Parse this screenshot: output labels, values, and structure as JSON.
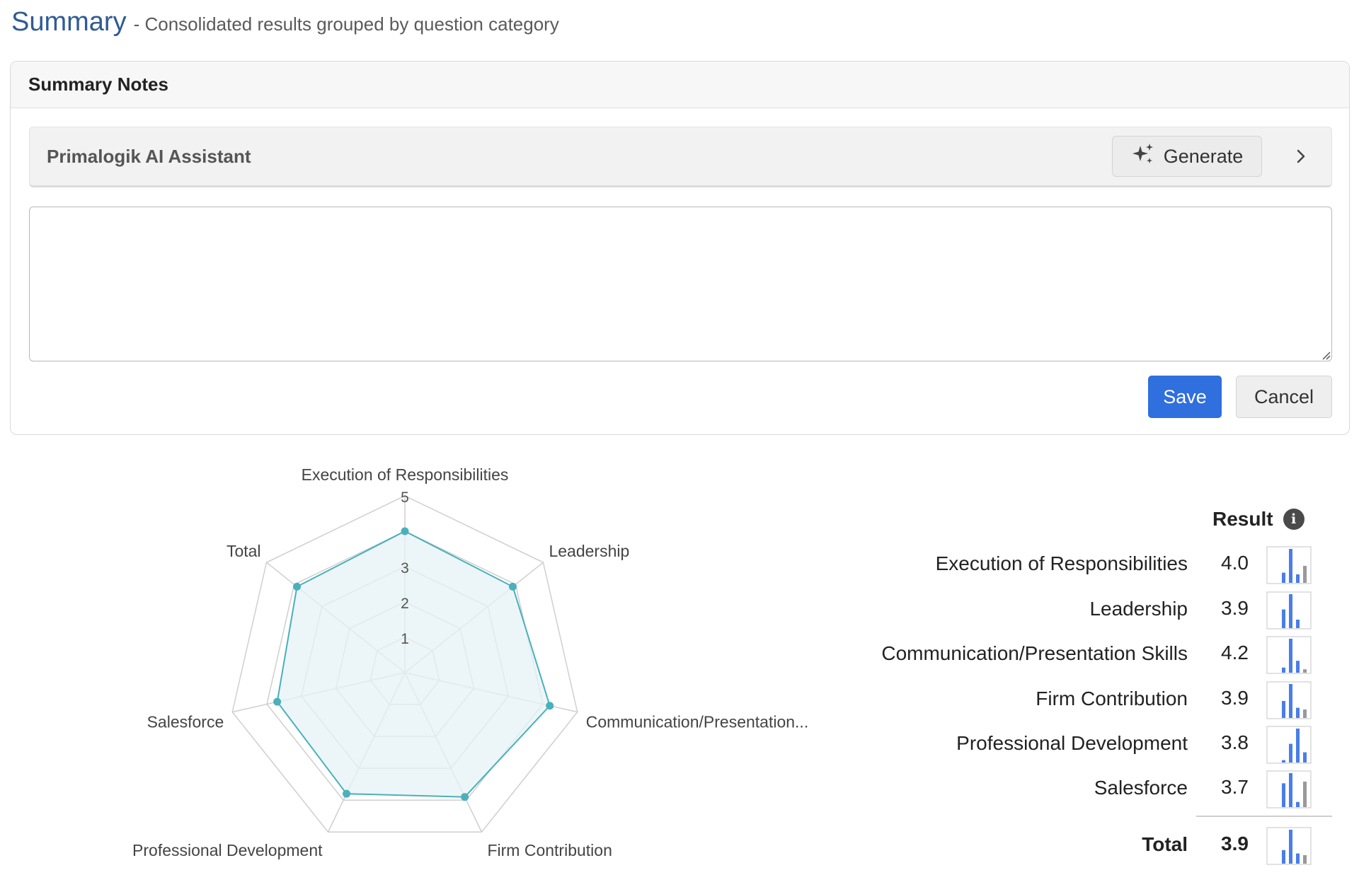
{
  "header": {
    "title": "Summary",
    "subtitle": "- Consolidated results grouped by question category"
  },
  "notes_card": {
    "title": "Summary Notes",
    "assistant_title": "Primalogik AI Assistant",
    "generate_label": "Generate",
    "textarea_value": "",
    "save_label": "Save",
    "cancel_label": "Cancel"
  },
  "colors": {
    "accent_blue": "#2f6fde",
    "title_blue": "#2f5b94",
    "radar_line": "#4ab0bb",
    "radar_fill": "#e6f3f5",
    "spark_blue": "#4a7de8",
    "spark_gray": "#999999"
  },
  "chart_data": {
    "type": "radar",
    "axes": [
      "Execution of Responsibilities",
      "Leadership",
      "Communication/Presentation...",
      "Firm Contribution",
      "Professional Development",
      "Salesforce",
      "Total"
    ],
    "values": [
      4.0,
      3.9,
      4.2,
      3.9,
      3.8,
      3.7,
      3.9
    ],
    "tick_labels": [
      "1",
      "2",
      "3",
      "5"
    ],
    "range": [
      0,
      5
    ],
    "grid": true
  },
  "results": {
    "header": "Result",
    "rows": [
      {
        "label": "Execution of Responsibilities",
        "score": "4.0",
        "spark": [
          {
            "v": 0.3,
            "c": "blue"
          },
          {
            "v": 1.0,
            "c": "blue"
          },
          {
            "v": 0.25,
            "c": "blue"
          },
          {
            "v": 0.5,
            "c": "gray"
          }
        ]
      },
      {
        "label": "Leadership",
        "score": "3.9",
        "spark": [
          {
            "v": 0.55,
            "c": "blue"
          },
          {
            "v": 1.0,
            "c": "blue"
          },
          {
            "v": 0.25,
            "c": "blue"
          }
        ]
      },
      {
        "label": "Communication/Presentation Skills",
        "score": "4.2",
        "spark": [
          {
            "v": 0.15,
            "c": "blue"
          },
          {
            "v": 1.0,
            "c": "blue"
          },
          {
            "v": 0.35,
            "c": "blue"
          },
          {
            "v": 0.1,
            "c": "gray"
          }
        ]
      },
      {
        "label": "Firm Contribution",
        "score": "3.9",
        "spark": [
          {
            "v": 0.5,
            "c": "blue"
          },
          {
            "v": 1.0,
            "c": "blue"
          },
          {
            "v": 0.3,
            "c": "blue"
          },
          {
            "v": 0.25,
            "c": "gray"
          }
        ]
      },
      {
        "label": "Professional Development",
        "score": "3.8",
        "spark": [
          {
            "v": 0.07,
            "c": "blue"
          },
          {
            "v": 0.55,
            "c": "blue"
          },
          {
            "v": 1.0,
            "c": "blue"
          },
          {
            "v": 0.3,
            "c": "blue"
          }
        ]
      },
      {
        "label": "Salesforce",
        "score": "3.7",
        "spark": [
          {
            "v": 0.7,
            "c": "blue"
          },
          {
            "v": 1.0,
            "c": "blue"
          },
          {
            "v": 0.15,
            "c": "blue"
          },
          {
            "v": 0.75,
            "c": "gray"
          }
        ]
      }
    ],
    "total": {
      "label": "Total",
      "score": "3.9",
      "spark": [
        {
          "v": 0.4,
          "c": "blue"
        },
        {
          "v": 1.0,
          "c": "blue"
        },
        {
          "v": 0.3,
          "c": "blue"
        },
        {
          "v": 0.25,
          "c": "gray"
        }
      ]
    }
  }
}
